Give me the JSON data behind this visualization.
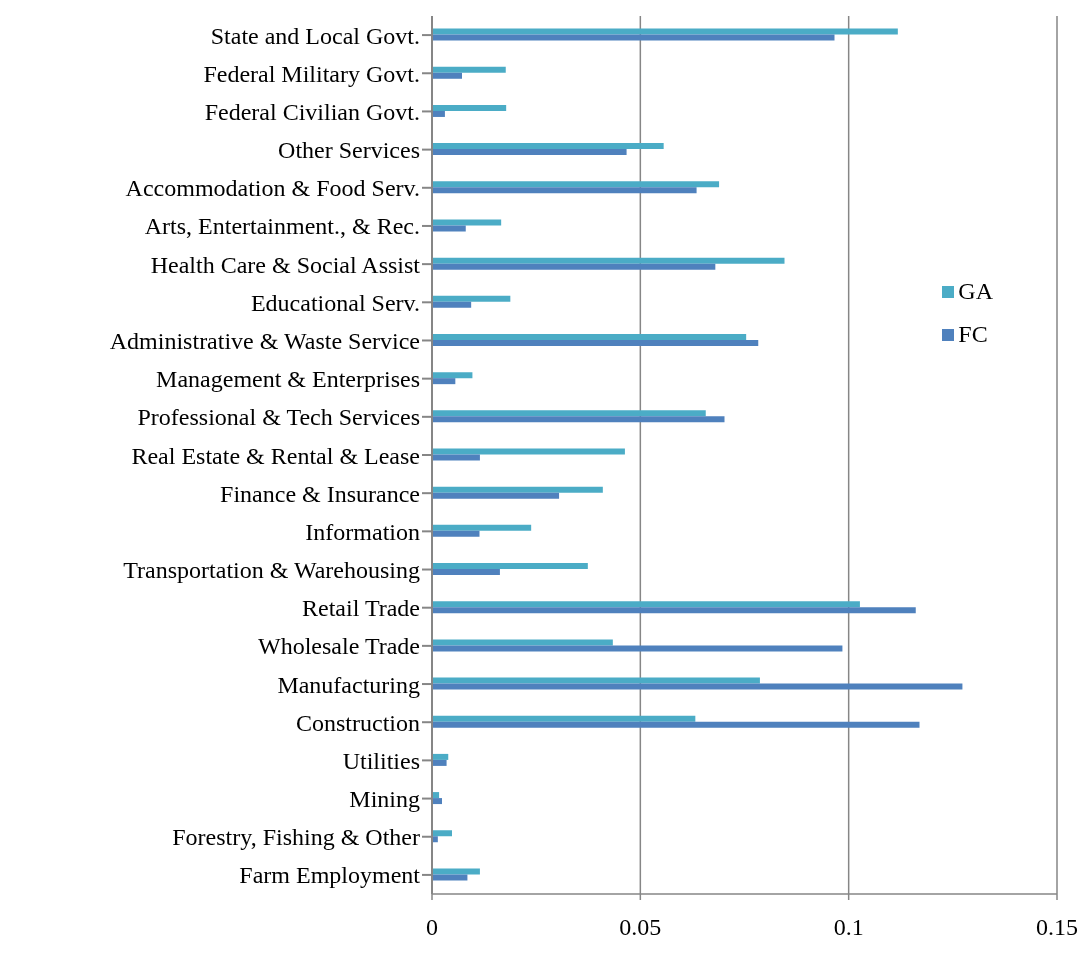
{
  "chart_data": {
    "type": "bar",
    "orientation": "horizontal",
    "categories": [
      "State and Local Govt.",
      "Federal Military Govt.",
      "Federal Civilian Govt.",
      "Other Services",
      "Accommodation & Food Serv.",
      "Arts, Entertainment., & Rec.",
      "Health Care & Social Assist",
      "Educational Serv.",
      "Administrative & Waste Service",
      "Management & Enterprises",
      "Professional & Tech Services",
      "Real Estate & Rental & Lease",
      "Finance & Insurance",
      "Information",
      "Transportation & Warehousing",
      "Retail Trade",
      "Wholesale Trade",
      "Manufacturing",
      "Construction",
      "Utilities",
      "Mining",
      "Forestry, Fishing & Other",
      "Farm Employment"
    ],
    "series": [
      {
        "name": "GA",
        "color": "#4bacc6",
        "values": [
          0.1118,
          0.0177,
          0.0178,
          0.0556,
          0.0689,
          0.0166,
          0.0846,
          0.0188,
          0.0754,
          0.0097,
          0.0657,
          0.0463,
          0.041,
          0.0238,
          0.0374,
          0.1027,
          0.0434,
          0.0787,
          0.0632,
          0.0039,
          0.0017,
          0.0048,
          0.0115
        ]
      },
      {
        "name": "FC",
        "color": "#4f81bd",
        "values": [
          0.0966,
          0.0072,
          0.0031,
          0.0467,
          0.0635,
          0.0081,
          0.068,
          0.0094,
          0.0783,
          0.0056,
          0.0702,
          0.0115,
          0.0305,
          0.0114,
          0.0163,
          0.1161,
          0.0985,
          0.1273,
          0.117,
          0.0035,
          0.0024,
          0.0014,
          0.0085
        ]
      }
    ],
    "xlim": [
      0,
      0.15
    ],
    "xticks": [
      0,
      0.05,
      0.1,
      0.15
    ],
    "grid": "x",
    "legend": "right"
  }
}
